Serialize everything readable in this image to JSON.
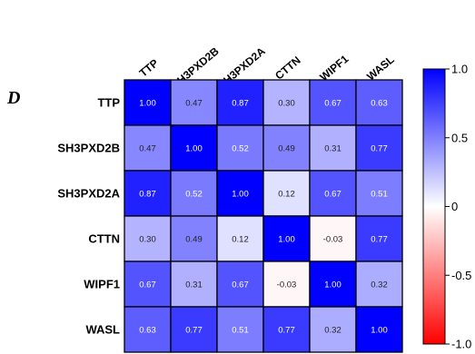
{
  "panel_label": "D",
  "colors": {
    "low": "#ff0000",
    "mid": "#ffffff",
    "high": "#0000ff",
    "border": "#000000"
  },
  "chart_data": {
    "type": "heatmap",
    "title": "",
    "xlabel": "",
    "ylabel": "",
    "columns": [
      "TTP",
      "SH3PXD2B",
      "SH3PXD2A",
      "CTTN",
      "WIPF1",
      "WASL"
    ],
    "rows": [
      "TTP",
      "SH3PXD2B",
      "SH3PXD2A",
      "CTTN",
      "WIPF1",
      "WASL"
    ],
    "values": [
      [
        1.0,
        0.47,
        0.87,
        0.3,
        0.67,
        0.63
      ],
      [
        0.47,
        1.0,
        0.52,
        0.49,
        0.31,
        0.77
      ],
      [
        0.87,
        0.52,
        1.0,
        0.12,
        0.67,
        0.51
      ],
      [
        0.3,
        0.49,
        0.12,
        1.0,
        -0.03,
        0.77
      ],
      [
        0.67,
        0.31,
        0.67,
        -0.03,
        1.0,
        0.32
      ],
      [
        0.63,
        0.77,
        0.51,
        0.77,
        0.32,
        1.0
      ]
    ],
    "value_format": "2 decimals",
    "colorbar": {
      "range": [
        -1.0,
        1.0
      ],
      "ticks": [
        1.0,
        0.5,
        0,
        -0.5,
        -1.0
      ],
      "tick_labels": [
        "1.0",
        "0.5",
        "0",
        "-0.5",
        "-1.0"
      ]
    },
    "grid": true,
    "legend": "right"
  }
}
